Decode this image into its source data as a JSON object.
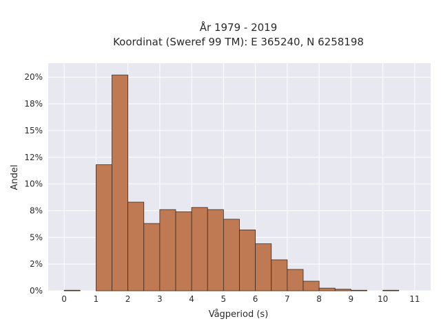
{
  "chart_data": {
    "type": "bar",
    "title": "År 1979 - 2019",
    "subtitle": "Koordinat (Sweref 99 TM): E 365240, N 6258198",
    "xlabel": "Vågperiod (s)",
    "ylabel": "Andel",
    "bin_width": 0.5,
    "bin_starts": [
      0,
      0.5,
      1,
      1.5,
      2,
      2.5,
      3,
      3.5,
      4,
      4.5,
      5,
      5.5,
      6,
      6.5,
      7,
      7.5,
      8,
      8.5,
      9,
      9.5,
      10,
      10.5,
      11
    ],
    "values": [
      0.05,
      0,
      11.8,
      20.2,
      8.3,
      6.3,
      7.6,
      7.4,
      7.8,
      7.6,
      6.7,
      5.7,
      4.4,
      2.9,
      2.0,
      0.9,
      0.25,
      0.15,
      0.05,
      0,
      0.05,
      0,
      0
    ],
    "xlim": [
      -0.5,
      11.5
    ],
    "ylim": [
      0,
      21.3
    ],
    "x_ticks": [
      0,
      1,
      2,
      3,
      4,
      5,
      6,
      7,
      8,
      9,
      10,
      11
    ],
    "x_tick_labels": [
      "0",
      "1",
      "2",
      "3",
      "4",
      "5",
      "6",
      "7",
      "8",
      "9",
      "10",
      "11"
    ],
    "y_ticks": [
      0,
      2.5,
      5,
      7.5,
      10,
      12.5,
      15,
      17.5,
      20
    ],
    "y_tick_labels": [
      "0%",
      "2%",
      "5%",
      "8%",
      "10%",
      "12%",
      "15%",
      "18%",
      "20%"
    ],
    "grid": true,
    "colors": {
      "bar_fill": "#bf7a53",
      "bar_edge": "#3b2a20",
      "plot_bg": "#e8e8f0",
      "grid": "#ffffff"
    }
  }
}
